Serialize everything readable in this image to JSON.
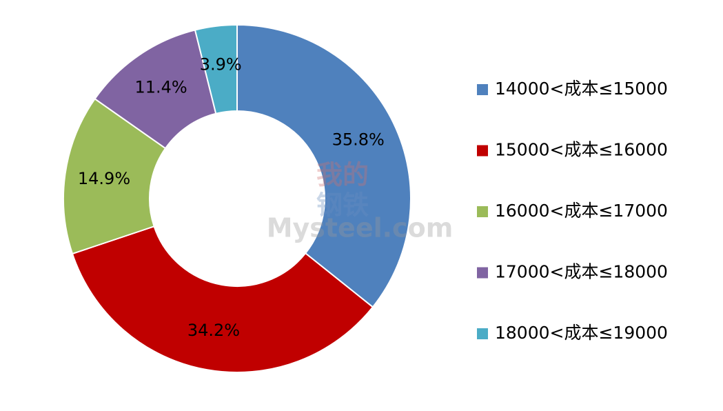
{
  "chart_data": {
    "type": "donut",
    "categories": [
      "14000<成本≤15000",
      "15000<成本≤16000",
      "16000<成本≤17000",
      "17000<成本≤18000",
      "18000<成本≤19000"
    ],
    "values": [
      35.8,
      34.2,
      14.9,
      11.4,
      3.9
    ],
    "value_labels": [
      "35.8%",
      "34.2%",
      "14.9%",
      "11.4%",
      "3.9%"
    ],
    "colors": [
      "#4f81bd",
      "#c00000",
      "#9bbb59",
      "#8064a2",
      "#4bacc6"
    ],
    "legend": "right",
    "watermark": [
      "我的",
      "钢铁",
      "Mysteel.com"
    ]
  }
}
